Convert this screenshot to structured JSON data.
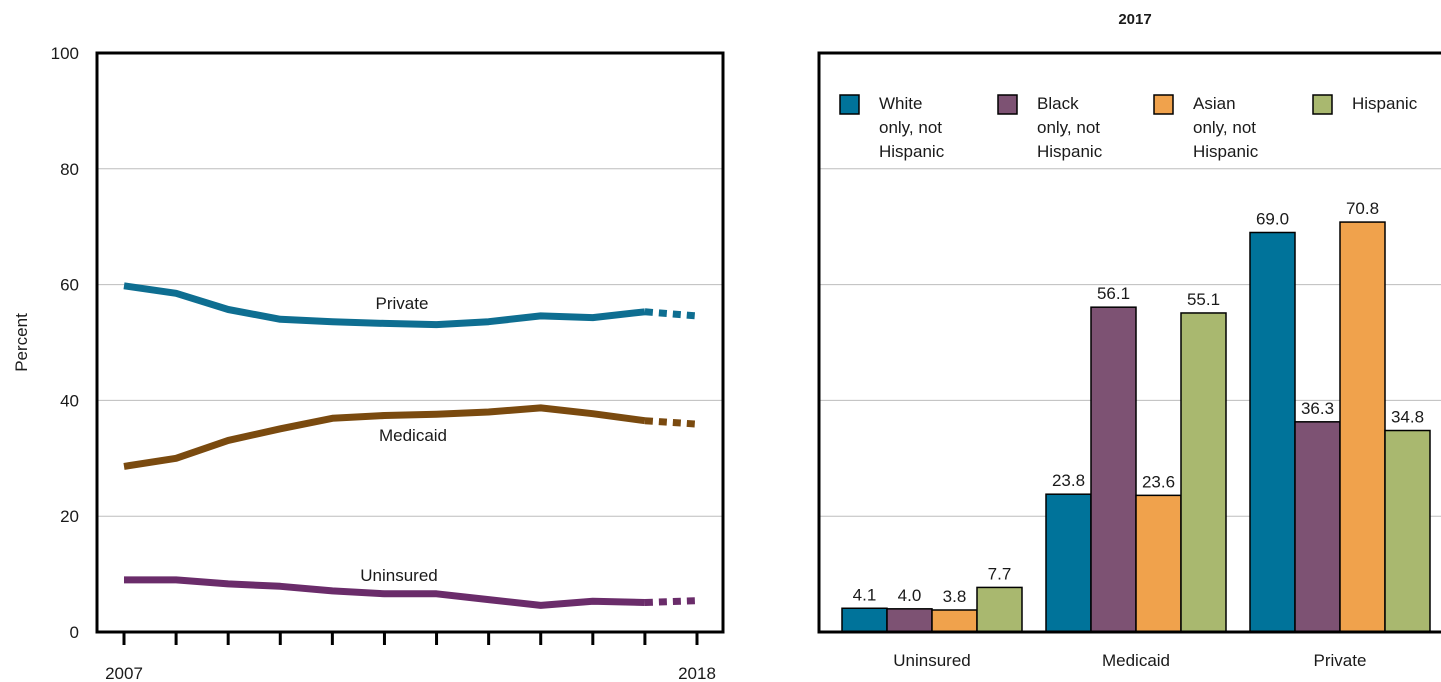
{
  "chart_data": [
    {
      "type": "line",
      "ylabel": "Percent",
      "ylim": [
        0,
        100
      ],
      "yticks": [
        0,
        20,
        40,
        60,
        80,
        100
      ],
      "x": [
        2007,
        2008,
        2009,
        2010,
        2011,
        2012,
        2013,
        2014,
        2015,
        2016,
        2017,
        2018
      ],
      "xtick_labels": [
        "2007",
        "2018"
      ],
      "grid": true,
      "series": [
        {
          "name": "Private",
          "color": "#0e6e91",
          "values": [
            59.8,
            58.5,
            55.7,
            54.0,
            53.6,
            53.3,
            53.1,
            53.6,
            54.6,
            54.3,
            55.3,
            54.6
          ],
          "projected_from_index": 10
        },
        {
          "name": "Medicaid",
          "color": "#7a4a0f",
          "values": [
            28.6,
            30.0,
            33.1,
            35.1,
            36.9,
            37.4,
            37.6,
            38.0,
            38.7,
            37.7,
            36.5,
            35.9
          ],
          "projected_from_index": 10
        },
        {
          "name": "Uninsured",
          "color": "#6a2c6a",
          "values": [
            9.0,
            9.0,
            8.3,
            7.9,
            7.1,
            6.6,
            6.6,
            5.6,
            4.6,
            5.3,
            5.1,
            5.4
          ],
          "projected_from_index": 10
        }
      ]
    },
    {
      "type": "bar",
      "title": "2017",
      "ylim": [
        0,
        100
      ],
      "grid": true,
      "legend_position": "top",
      "categories": [
        "Uninsured",
        "Medicaid",
        "Private"
      ],
      "series": [
        {
          "name": "White only, not Hispanic",
          "legend_lines": [
            "White",
            "only, not",
            "Hispanic"
          ],
          "color": "#00739a",
          "values": [
            4.1,
            23.8,
            69.0
          ],
          "labels": [
            "4.1",
            "23.8",
            "69.0"
          ]
        },
        {
          "name": "Black only, not Hispanic",
          "legend_lines": [
            "Black",
            "only, not",
            "Hispanic"
          ],
          "color": "#7d5273",
          "values": [
            4.0,
            56.1,
            36.3
          ],
          "labels": [
            "4.0",
            "56.1",
            "36.3"
          ]
        },
        {
          "name": "Asian only, not Hispanic",
          "legend_lines": [
            "Asian",
            "only, not",
            "Hispanic"
          ],
          "color": "#f0a24c",
          "values": [
            3.8,
            23.6,
            70.8
          ],
          "labels": [
            "3.8",
            "23.6",
            "70.8"
          ]
        },
        {
          "name": "Hispanic",
          "legend_lines": [
            "Hispanic"
          ],
          "color": "#a9b86f",
          "values": [
            7.7,
            55.1,
            34.8
          ],
          "labels": [
            "7.7",
            "55.1",
            "34.8"
          ]
        }
      ]
    }
  ]
}
